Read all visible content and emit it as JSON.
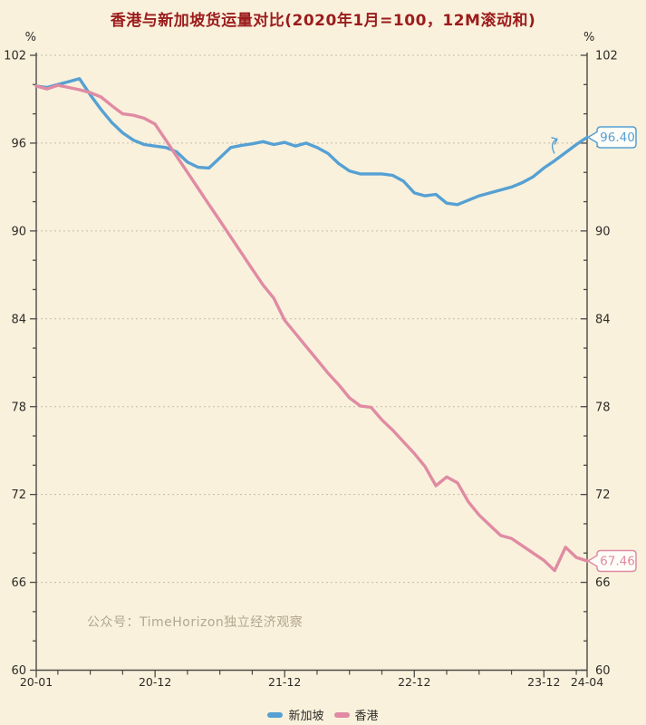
{
  "title": "香港与新加坡货运量对比(2020年1月=100，12M滚动和)",
  "watermark": "公众号：TimeHorizon独立经济观察",
  "units": {
    "left": "%",
    "right": "%"
  },
  "legend": [
    {
      "label": "新加坡",
      "color": "#56a0d3"
    },
    {
      "label": "香港",
      "color": "#e08ba3"
    }
  ],
  "colors": {
    "background": "#f9f1dc",
    "title": "#9b1c1c",
    "text": "#2e2b28",
    "axis": "#4a4a46",
    "grid": "#c4bda8",
    "watermark": "#b3a78f",
    "callout_fill": "#fffdf8",
    "singapore": "#56a0d3",
    "hongkong": "#e08ba3"
  },
  "chart_data": {
    "type": "line",
    "title": "香港与新加坡货运量对比(2020年1月=100，12M滚动和)",
    "x_start": "20-01",
    "x_end": "24-04",
    "x_unit": "month",
    "ylim": [
      60,
      102
    ],
    "y_major_step": 6,
    "y_minor_step": 2,
    "grid": "dashed-horizontal",
    "legend_position": "bottom-center",
    "x_ticks": [
      {
        "m": 0,
        "label": "20-01"
      },
      {
        "m": 11,
        "label": "20-12"
      },
      {
        "m": 23,
        "label": "21-12"
      },
      {
        "m": 35,
        "label": "22-12"
      },
      {
        "m": 47,
        "label": "23-12"
      },
      {
        "m": 51,
        "label": "24-04"
      }
    ],
    "x_minor_tick_every_months": 3,
    "series": [
      {
        "name": "新加坡",
        "color": "#56a0d3",
        "end_label": "96.40",
        "values": [
          99.9,
          99.8,
          100.0,
          100.2,
          100.4,
          99.3,
          98.3,
          97.4,
          96.7,
          96.2,
          95.9,
          95.8,
          95.7,
          95.4,
          94.7,
          94.35,
          94.3,
          95.0,
          95.7,
          95.85,
          95.95,
          96.1,
          95.9,
          96.05,
          95.8,
          96.0,
          95.7,
          95.3,
          94.6,
          94.1,
          93.9,
          93.9,
          93.9,
          93.8,
          93.4,
          92.6,
          92.4,
          92.5,
          91.9,
          91.8,
          92.1,
          92.4,
          92.6,
          92.8,
          93.0,
          93.3,
          93.7,
          94.3,
          94.8,
          95.35,
          95.9,
          96.4
        ]
      },
      {
        "name": "香港",
        "color": "#e08ba3",
        "end_label": "67.46",
        "values": [
          99.9,
          99.7,
          99.95,
          99.8,
          99.65,
          99.45,
          99.15,
          98.55,
          98.0,
          97.9,
          97.7,
          97.3,
          96.2,
          95.1,
          94.0,
          92.9,
          91.8,
          90.7,
          89.6,
          88.5,
          87.4,
          86.3,
          85.4,
          83.9,
          83.0,
          82.1,
          81.2,
          80.3,
          79.5,
          78.6,
          78.05,
          77.95,
          77.1,
          76.4,
          75.6,
          74.8,
          73.9,
          72.6,
          73.2,
          72.8,
          71.5,
          70.6,
          69.9,
          69.2,
          69.0,
          68.5,
          68.0,
          67.5,
          66.8,
          68.4,
          67.7,
          67.46
        ]
      }
    ]
  }
}
